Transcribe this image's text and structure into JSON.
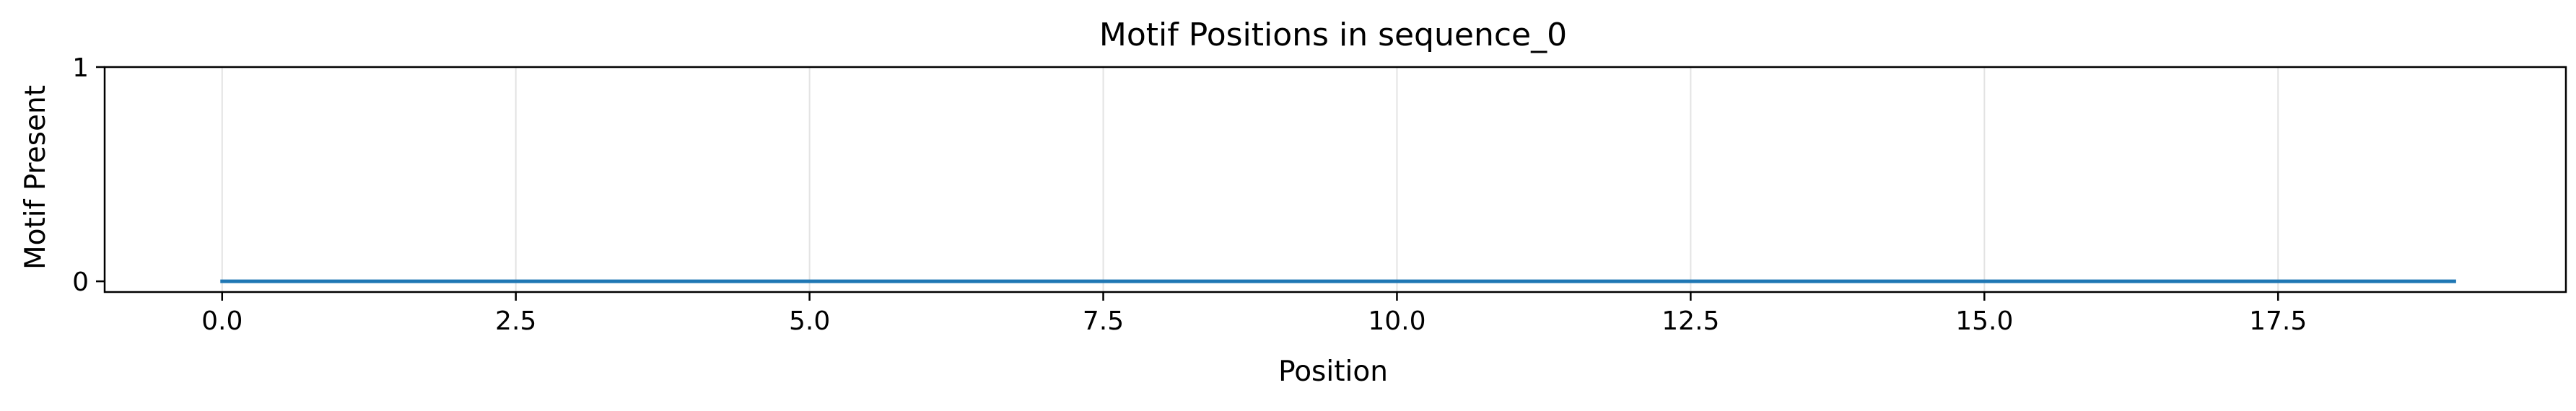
{
  "chart_data": {
    "type": "line",
    "title": "Motif Positions in sequence_0",
    "xlabel": "Position",
    "ylabel": "Motif Present",
    "xlim": [
      -1.0,
      19.95
    ],
    "ylim": [
      -0.05,
      1.0
    ],
    "x_ticks": [
      0.0,
      2.5,
      5.0,
      7.5,
      10.0,
      12.5,
      15.0,
      17.5
    ],
    "x_tick_labels": [
      "0.0",
      "2.5",
      "5.0",
      "7.5",
      "10.0",
      "12.5",
      "15.0",
      "17.5"
    ],
    "y_ticks": [
      0,
      1
    ],
    "y_tick_labels": [
      "0",
      "1"
    ],
    "grid": "vertical",
    "legend": "none",
    "series": [
      {
        "color": "#1f77b4",
        "x": [
          0,
          1,
          2,
          3,
          4,
          5,
          6,
          7,
          8,
          9,
          10,
          11,
          12,
          13,
          14,
          15,
          16,
          17,
          18,
          19
        ],
        "y": [
          0,
          0,
          0,
          0,
          0,
          0,
          0,
          0,
          0,
          0,
          0,
          0,
          0,
          0,
          0,
          0,
          0,
          0,
          0,
          0
        ]
      }
    ]
  }
}
